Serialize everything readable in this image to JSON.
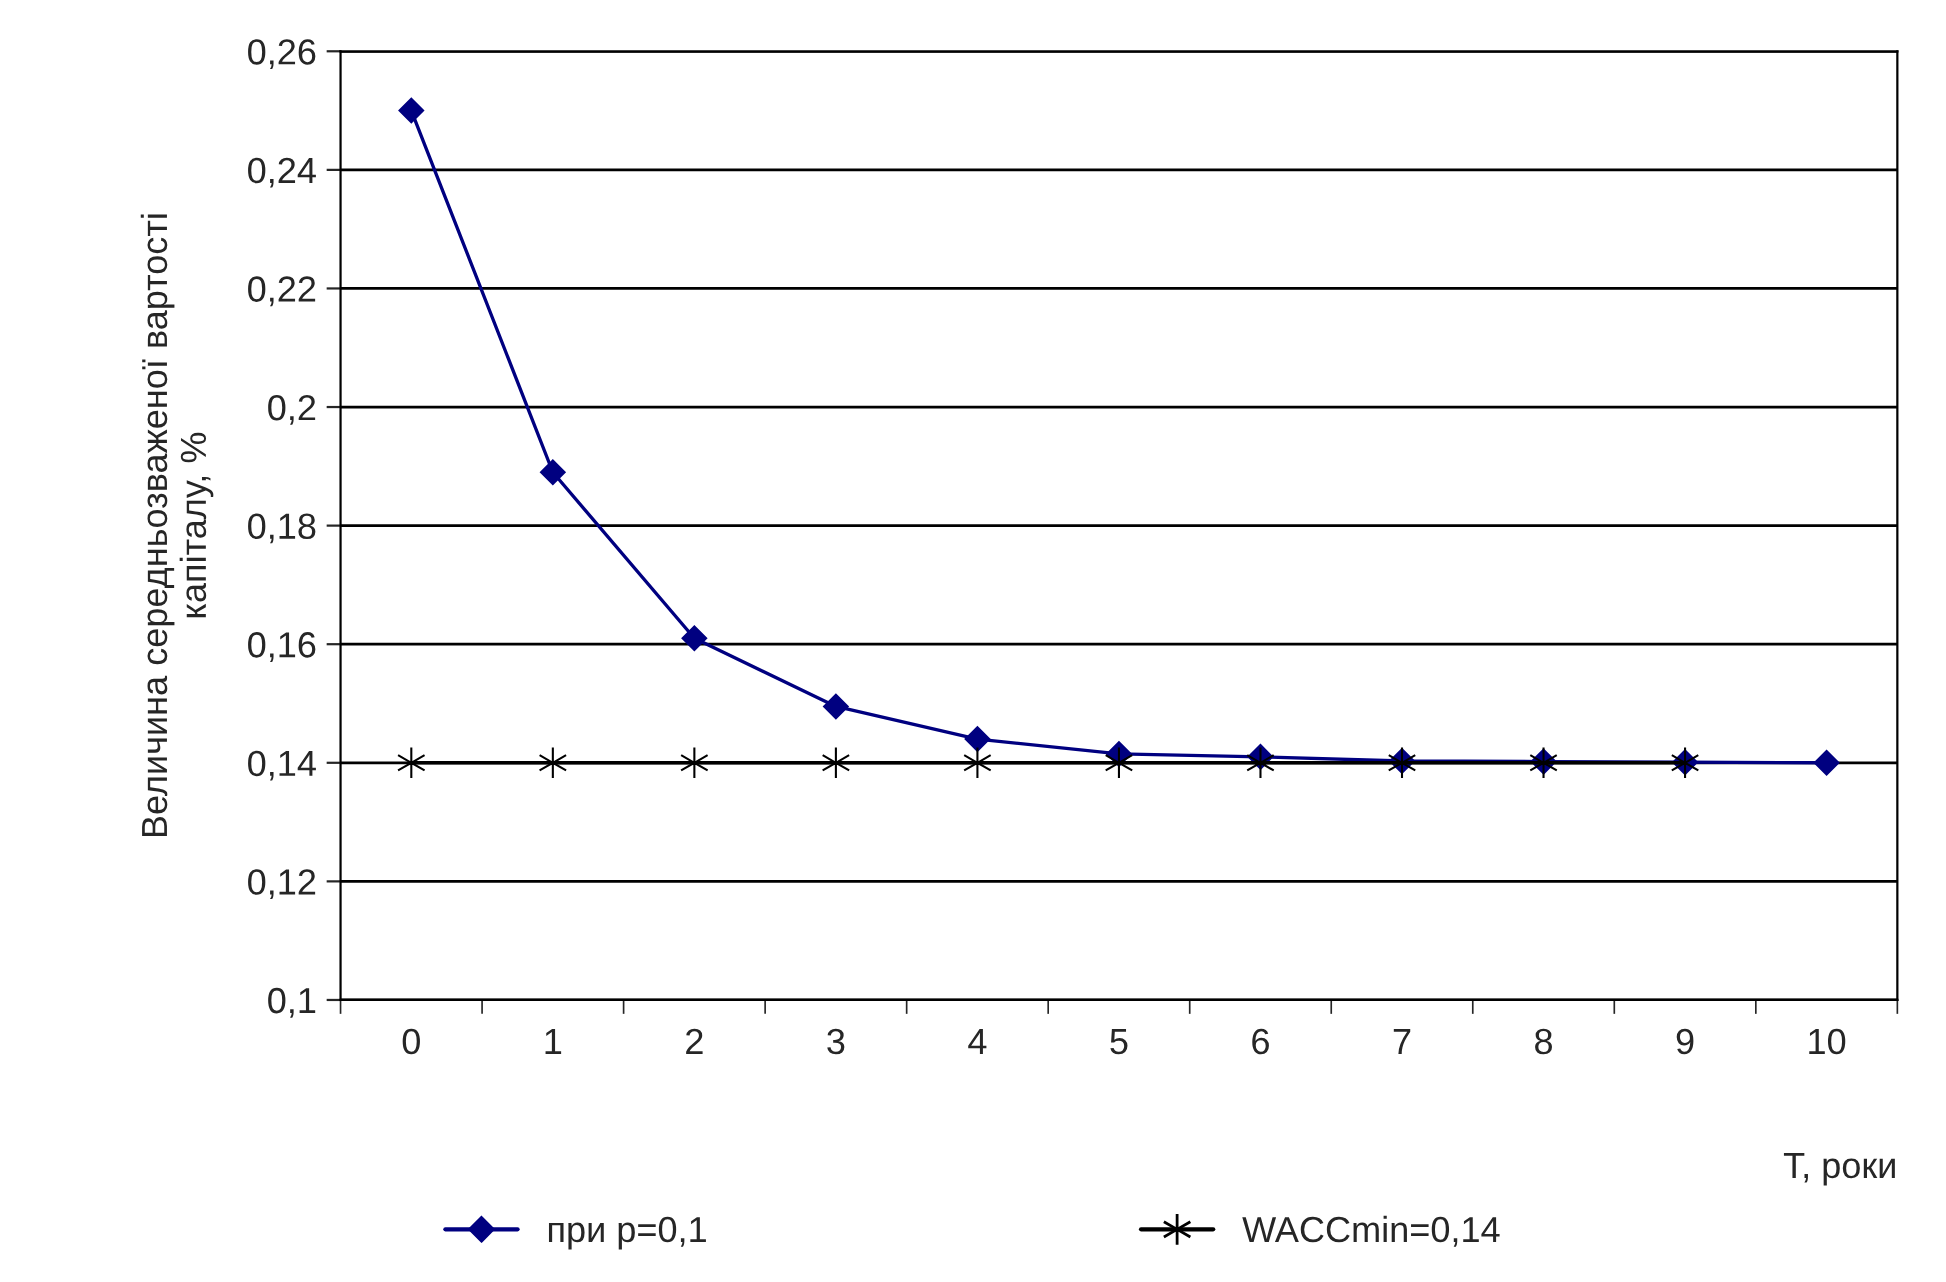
{
  "chart_data": {
    "type": "line",
    "xlabel": "T, роки",
    "ylabel": "Величина середньозваженої вартості\nкапіталу, %",
    "categories": [
      "0",
      "1",
      "2",
      "3",
      "4",
      "5",
      "6",
      "7",
      "8",
      "9",
      "10"
    ],
    "series": [
      {
        "name": "при p=0,1",
        "color": "#000080",
        "marker": "diamond",
        "values": [
          0.25,
          0.189,
          0.161,
          0.1495,
          0.144,
          0.1415,
          0.141,
          0.1403,
          0.1402,
          0.1401,
          0.14
        ]
      },
      {
        "name": "WACCmin=0,14",
        "color": "#000000",
        "marker": "cross",
        "values": [
          0.14,
          0.14,
          0.14,
          0.14,
          0.14,
          0.14,
          0.14,
          0.14,
          0.14,
          0.14,
          null
        ]
      }
    ],
    "ylim": [
      0.1,
      0.26
    ],
    "yticks": [
      {
        "value": 0.1,
        "label": "0,1"
      },
      {
        "value": 0.12,
        "label": "0,12"
      },
      {
        "value": 0.14,
        "label": "0,14"
      },
      {
        "value": 0.16,
        "label": "0,16"
      },
      {
        "value": 0.18,
        "label": "0,18"
      },
      {
        "value": 0.2,
        "label": "0,2"
      },
      {
        "value": 0.22,
        "label": "0,22"
      },
      {
        "value": 0.24,
        "label": "0,24"
      },
      {
        "value": 0.26,
        "label": "0,26"
      }
    ],
    "grid": "y",
    "legend": "bottom",
    "line_style": "solid"
  }
}
